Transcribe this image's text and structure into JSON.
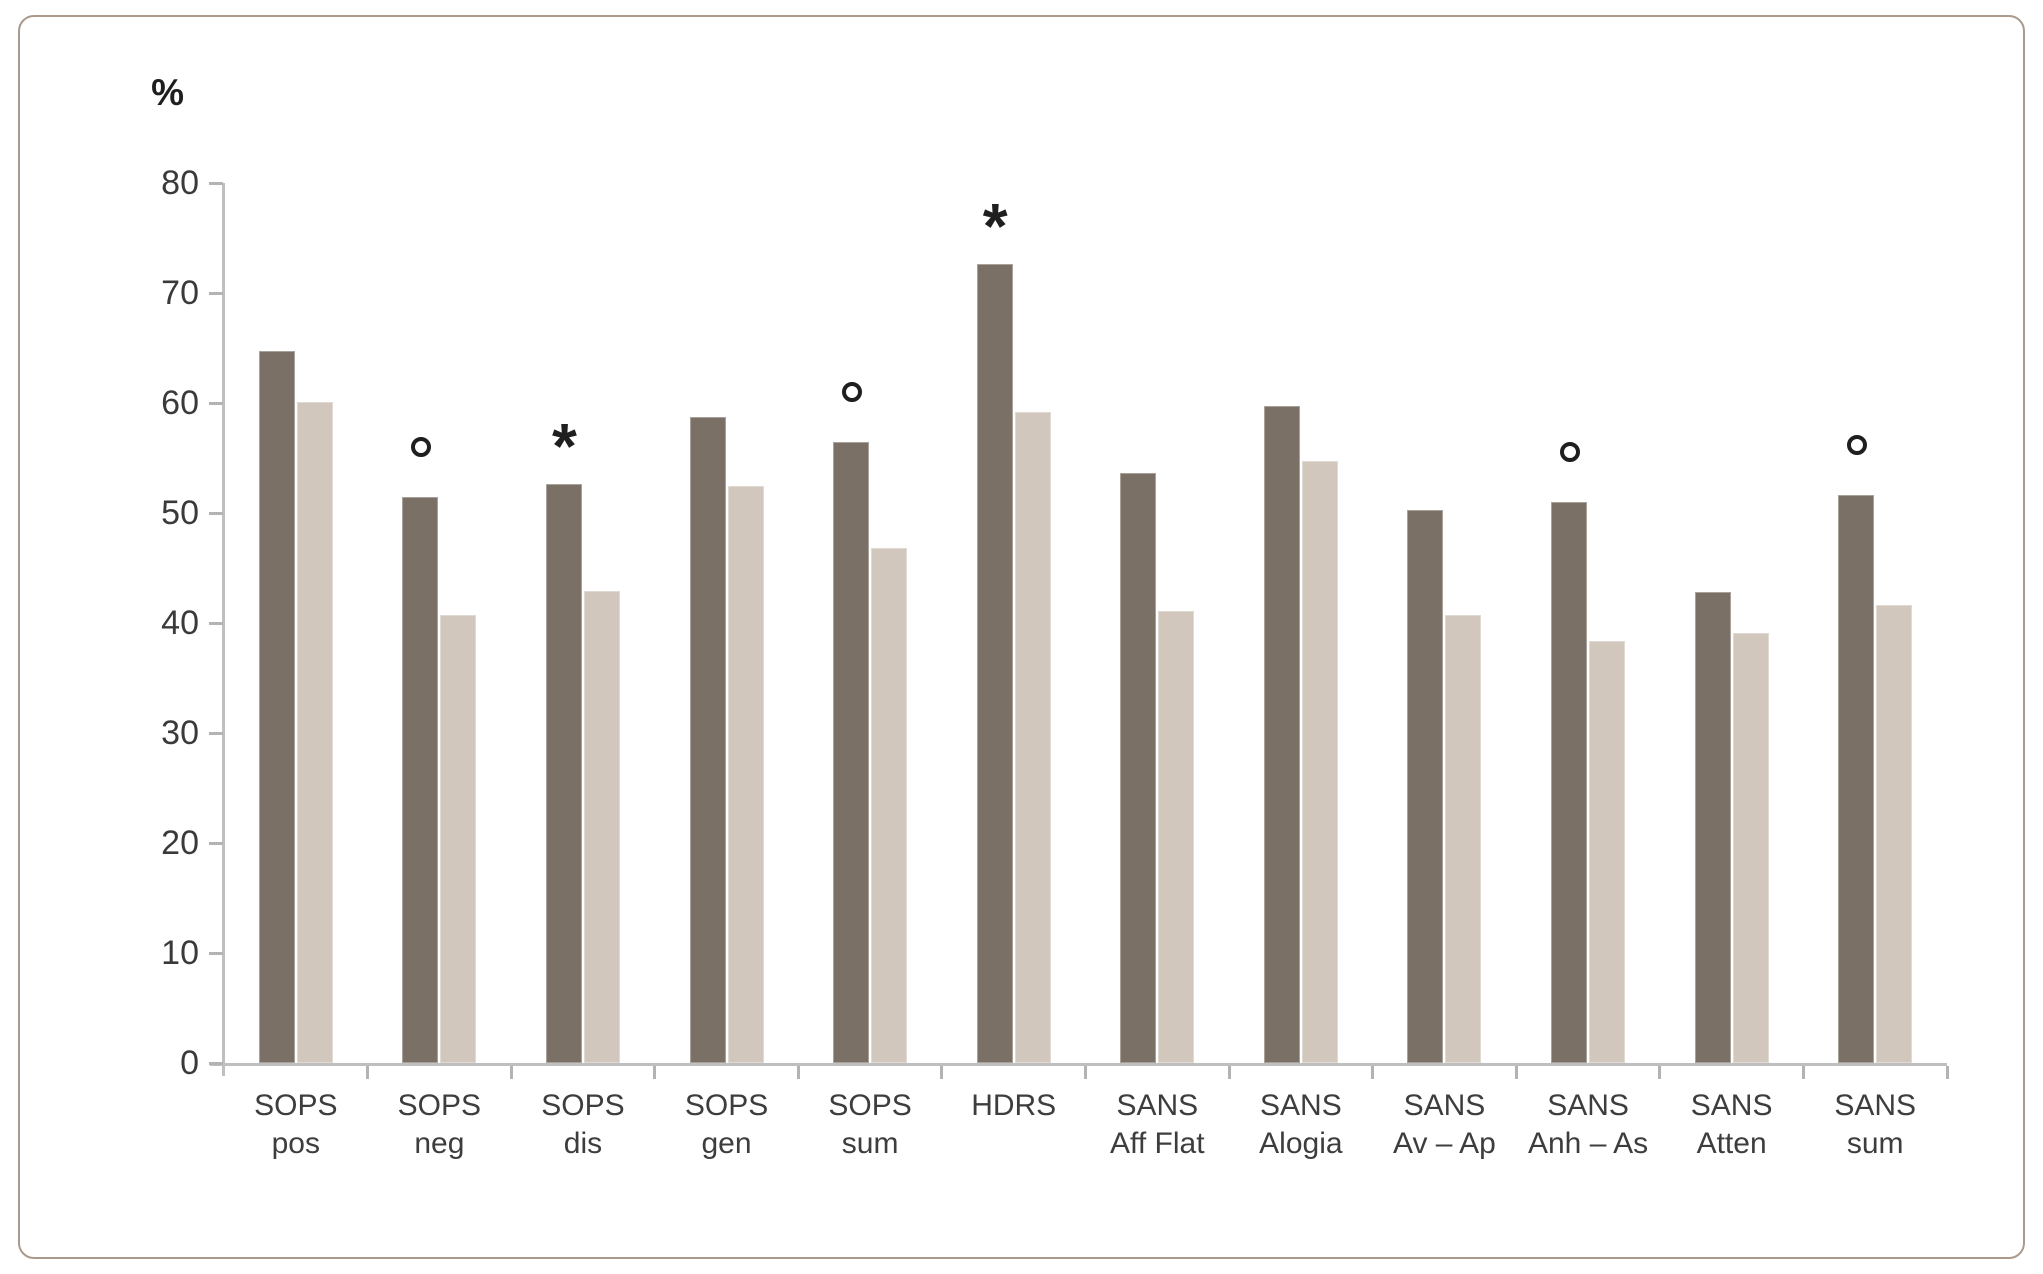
{
  "chart": {
    "ylabel": "%"
  },
  "chart_data": {
    "type": "bar",
    "title": "",
    "xlabel": "",
    "ylabel": "%",
    "ylim": [
      0,
      80
    ],
    "yticks": [
      0,
      10,
      20,
      30,
      40,
      50,
      60,
      70,
      80
    ],
    "grid": false,
    "legend": "none",
    "categories": [
      "SOPS pos",
      "SOPS neg",
      "SOPS dis",
      "SOPS gen",
      "SOPS sum",
      "HDRS",
      "SANS Aff Flat",
      "SANS Alogia",
      "SANS Av – Ap",
      "SANS Anh – As",
      "SANS Atten",
      "SANS sum"
    ],
    "category_lines": [
      [
        "SOPS",
        "pos"
      ],
      [
        "SOPS",
        "neg"
      ],
      [
        "SOPS",
        "dis"
      ],
      [
        "SOPS",
        "gen"
      ],
      [
        "SOPS",
        "sum"
      ],
      [
        "HDRS"
      ],
      [
        "SANS",
        "Aff Flat"
      ],
      [
        "SANS",
        "Alogia"
      ],
      [
        "SANS",
        "Av – Ap"
      ],
      [
        "SANS",
        "Anh – As"
      ],
      [
        "SANS",
        "Atten"
      ],
      [
        "SANS",
        "sum"
      ]
    ],
    "series": [
      {
        "name": "dark-bar-series",
        "color": "#7b7065",
        "values": [
          64.7,
          51.5,
          52.6,
          58.7,
          56.5,
          72.6,
          53.6,
          59.7,
          50.3,
          51.0,
          42.8,
          51.6
        ]
      },
      {
        "name": "light-bar-series",
        "color": "#d1c7bc",
        "values": [
          60.1,
          40.7,
          42.9,
          52.5,
          46.8,
          59.2,
          41.1,
          54.7,
          40.7,
          38.4,
          39.1,
          41.6
        ]
      }
    ],
    "significance_markers": [
      {
        "category": "SOPS neg",
        "index": 1,
        "symbol": "°"
      },
      {
        "category": "SOPS dis",
        "index": 2,
        "symbol": "*"
      },
      {
        "category": "SOPS sum",
        "index": 4,
        "symbol": "°"
      },
      {
        "category": "HDRS",
        "index": 5,
        "symbol": "*"
      },
      {
        "category": "SANS Anh – As",
        "index": 9,
        "symbol": "°"
      },
      {
        "category": "SANS sum",
        "index": 11,
        "symbol": "°"
      }
    ],
    "colors": {
      "axis": "#bfbfbf",
      "tick": "#b3b3b3",
      "text": "#3d3d3d",
      "marker": "#1f1f1f",
      "frame_border": "#ab9a8b"
    }
  }
}
